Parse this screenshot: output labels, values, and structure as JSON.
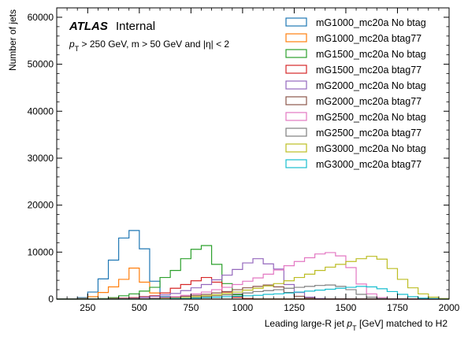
{
  "chart_data": {
    "type": "histogram-step",
    "xlabel": "Leading large-R jet p_T [GeV] matched to H2",
    "ylabel": "Number of jets",
    "xlim": [
      100,
      2000
    ],
    "ylim": [
      0,
      62000
    ],
    "bin_width": 50,
    "bin_start": 100,
    "x_ticks": [
      250,
      500,
      750,
      1000,
      1250,
      1500,
      1750,
      2000
    ],
    "y_ticks": [
      0,
      10000,
      20000,
      30000,
      40000,
      50000,
      60000
    ],
    "legend_position": "top-right",
    "atlas_label": "ATLAS",
    "atlas_status": "Internal",
    "cut_text": "p_T > 250 GeV, m > 50 GeV and |η| < 2",
    "series": [
      {
        "name": "mG1000_mc20a No btag",
        "color": "#1f77b4",
        "values": [
          0,
          0,
          300,
          1500,
          4300,
          8300,
          13000,
          14600,
          10700,
          3800,
          500,
          0,
          0,
          0,
          0,
          0,
          0,
          0,
          0,
          0,
          0,
          0,
          0,
          0,
          0,
          0,
          0,
          0,
          0,
          0,
          0,
          0,
          0,
          0,
          0,
          0,
          0,
          0
        ]
      },
      {
        "name": "mG1000_mc20a btag77",
        "color": "#ff7f0e",
        "values": [
          0,
          0,
          100,
          500,
          1400,
          2600,
          4200,
          6600,
          3600,
          1300,
          200,
          0,
          0,
          0,
          0,
          0,
          0,
          0,
          0,
          0,
          0,
          0,
          0,
          0,
          0,
          0,
          0,
          0,
          0,
          0,
          0,
          0,
          0,
          0,
          0,
          0,
          0,
          0
        ]
      },
      {
        "name": "mG1500_mc20a No btag",
        "color": "#2ca02c",
        "values": [
          0,
          0,
          0,
          0,
          100,
          300,
          700,
          1100,
          1700,
          2500,
          4600,
          6100,
          8600,
          10600,
          11400,
          7400,
          3300,
          900,
          100,
          0,
          0,
          0,
          0,
          0,
          0,
          0,
          0,
          0,
          0,
          0,
          0,
          0,
          0,
          0,
          0,
          0,
          0,
          0
        ]
      },
      {
        "name": "mG1500_mc20a btag77",
        "color": "#d62728",
        "values": [
          0,
          0,
          0,
          0,
          0,
          100,
          200,
          300,
          500,
          700,
          1300,
          2300,
          3100,
          3900,
          4600,
          3600,
          1500,
          400,
          100,
          0,
          0,
          0,
          0,
          0,
          0,
          0,
          0,
          0,
          0,
          0,
          0,
          0,
          0,
          0,
          0,
          0,
          0,
          0
        ]
      },
      {
        "name": "mG2000_mc20a No btag",
        "color": "#9467bd",
        "values": [
          0,
          0,
          0,
          0,
          0,
          0,
          100,
          200,
          400,
          600,
          900,
          1200,
          1800,
          2400,
          3100,
          4100,
          5100,
          6300,
          7700,
          8600,
          7500,
          6400,
          3100,
          1400,
          400,
          100,
          0,
          0,
          0,
          0,
          0,
          0,
          0,
          0,
          0,
          0,
          0,
          0
        ]
      },
      {
        "name": "mG2000_mc20a btag77",
        "color": "#8c564b",
        "values": [
          0,
          0,
          0,
          0,
          0,
          0,
          0,
          100,
          100,
          200,
          300,
          400,
          600,
          800,
          1000,
          1300,
          1600,
          2000,
          2400,
          2700,
          3000,
          2600,
          1400,
          600,
          200,
          0,
          0,
          0,
          0,
          0,
          0,
          0,
          0,
          0,
          0,
          0,
          0,
          0
        ]
      },
      {
        "name": "mG2500_mc20a No btag",
        "color": "#e377c2",
        "values": [
          0,
          0,
          0,
          0,
          0,
          0,
          0,
          0,
          100,
          200,
          300,
          500,
          800,
          1100,
          1500,
          2000,
          2500,
          3100,
          3800,
          4500,
          5300,
          6200,
          7100,
          8000,
          8800,
          9600,
          9900,
          9200,
          6700,
          3200,
          1100,
          300,
          0,
          0,
          0,
          0,
          0,
          0
        ]
      },
      {
        "name": "mG2500_mc20a btag77",
        "color": "#7f7f7f",
        "values": [
          0,
          0,
          0,
          0,
          0,
          0,
          0,
          0,
          0,
          100,
          100,
          200,
          300,
          400,
          500,
          700,
          900,
          1100,
          1300,
          1600,
          1800,
          2000,
          2300,
          2500,
          2700,
          2900,
          3000,
          2700,
          2000,
          1000,
          400,
          100,
          0,
          0,
          0,
          0,
          0,
          0
        ]
      },
      {
        "name": "mG3000_mc20a No btag",
        "color": "#bcbd22",
        "values": [
          0,
          0,
          0,
          0,
          0,
          0,
          0,
          0,
          0,
          0,
          100,
          200,
          300,
          500,
          700,
          900,
          1200,
          1500,
          1900,
          2300,
          2800,
          3300,
          3900,
          4600,
          5300,
          6100,
          6800,
          7400,
          8000,
          8600,
          9100,
          8500,
          6500,
          4200,
          2400,
          1100,
          400,
          100
        ]
      },
      {
        "name": "mG3000_mc20a btag77",
        "color": "#17becf",
        "values": [
          0,
          0,
          0,
          0,
          0,
          0,
          0,
          0,
          0,
          0,
          0,
          100,
          100,
          200,
          300,
          400,
          500,
          600,
          700,
          800,
          1000,
          1100,
          1300,
          1500,
          1700,
          1900,
          2100,
          2300,
          2500,
          2700,
          2600,
          2200,
          1600,
          1000,
          500,
          200,
          100,
          0
        ]
      }
    ]
  }
}
